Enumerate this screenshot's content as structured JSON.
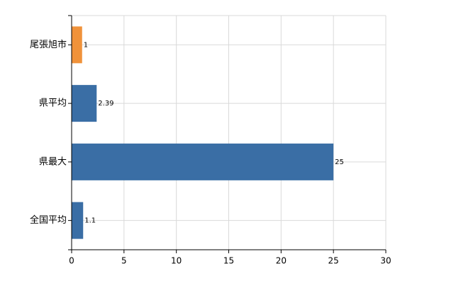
{
  "chart_data": {
    "type": "bar",
    "orientation": "horizontal",
    "categories": [
      "尾張旭市",
      "県平均",
      "県最大",
      "全国平均"
    ],
    "values": [
      1,
      2.39,
      25,
      1.1
    ],
    "colors": [
      "#f0923a",
      "#3a6ea5",
      "#3a6ea5",
      "#3a6ea5"
    ],
    "xlim": [
      0,
      30
    ],
    "xticks": [
      0,
      5,
      10,
      15,
      20,
      25,
      30
    ],
    "grid": true
  }
}
